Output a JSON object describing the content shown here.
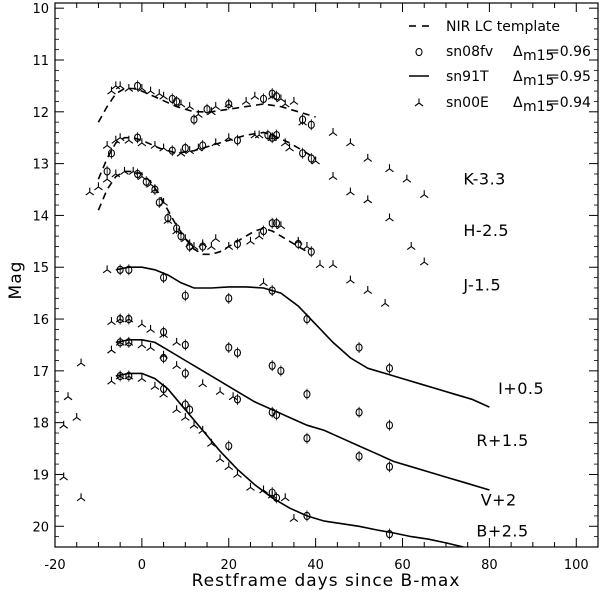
{
  "chart_data": {
    "type": "line",
    "xlabel": "Restframe days since B-max",
    "ylabel": "Mag",
    "xlim": [
      -20,
      105
    ],
    "ylim": [
      20.4,
      9.9
    ],
    "y_inverted": true,
    "x_ticks": [
      -20,
      0,
      20,
      40,
      60,
      80,
      100
    ],
    "x_tick_labels": [
      "-20",
      "0",
      "20",
      "40",
      "60",
      "80",
      "100"
    ],
    "y_ticks": [
      10,
      11,
      12,
      13,
      14,
      15,
      16,
      17,
      18,
      19,
      20
    ],
    "y_tick_labels": [
      "10",
      "11",
      "12",
      "13",
      "14",
      "15",
      "16",
      "17",
      "18",
      "19",
      "20"
    ],
    "legend": {
      "position": "top-right",
      "entries": [
        {
          "marker": "dash",
          "label": "NIR LC template"
        },
        {
          "marker": "circle",
          "label": "sn08fv",
          "delta_label": "Δ",
          "delta_sub": "m15",
          "delta_value": "=0.96"
        },
        {
          "marker": "line",
          "label": "sn91T",
          "delta_label": "Δ",
          "delta_sub": "m15",
          "delta_value": "=0.95"
        },
        {
          "marker": "tri",
          "label": "sn00E",
          "delta_label": "Δ",
          "delta_sub": "m15",
          "delta_value": "=0.94"
        }
      ]
    },
    "band_labels": [
      {
        "text": "K-3.3",
        "x": 74,
        "y": 13.4
      },
      {
        "text": "H-2.5",
        "x": 74,
        "y": 14.4
      },
      {
        "text": "J-1.5",
        "x": 74,
        "y": 15.45
      },
      {
        "text": "I+0.5",
        "x": 82,
        "y": 17.45
      },
      {
        "text": "R+1.5",
        "x": 77,
        "y": 18.45
      },
      {
        "text": "V+2",
        "x": 78,
        "y": 19.6
      },
      {
        "text": "B+2.5",
        "x": 77,
        "y": 20.2
      }
    ],
    "series": [
      {
        "name": "NIR LC template K",
        "style": "dashed",
        "points": [
          [
            -10,
            12.2
          ],
          [
            -8,
            11.9
          ],
          [
            -6,
            11.65
          ],
          [
            -4,
            11.55
          ],
          [
            -2,
            11.55
          ],
          [
            0,
            11.6
          ],
          [
            4,
            11.75
          ],
          [
            8,
            11.9
          ],
          [
            12,
            12.0
          ],
          [
            16,
            12.0
          ],
          [
            20,
            11.95
          ],
          [
            24,
            11.9
          ],
          [
            28,
            11.85
          ],
          [
            32,
            11.9
          ],
          [
            36,
            12.0
          ],
          [
            40,
            12.1
          ]
        ]
      },
      {
        "name": "NIR LC template H",
        "style": "dashed",
        "points": [
          [
            -10,
            13.3
          ],
          [
            -8,
            12.9
          ],
          [
            -6,
            12.6
          ],
          [
            -4,
            12.5
          ],
          [
            -2,
            12.5
          ],
          [
            0,
            12.55
          ],
          [
            4,
            12.7
          ],
          [
            8,
            12.8
          ],
          [
            12,
            12.75
          ],
          [
            16,
            12.65
          ],
          [
            20,
            12.55
          ],
          [
            24,
            12.45
          ],
          [
            28,
            12.4
          ],
          [
            30,
            12.45
          ],
          [
            34,
            12.6
          ],
          [
            38,
            12.8
          ],
          [
            40,
            12.9
          ]
        ]
      },
      {
        "name": "NIR LC template J",
        "style": "dashed",
        "points": [
          [
            -10,
            13.9
          ],
          [
            -8,
            13.5
          ],
          [
            -6,
            13.25
          ],
          [
            -4,
            13.15
          ],
          [
            -2,
            13.15
          ],
          [
            0,
            13.2
          ],
          [
            2,
            13.35
          ],
          [
            4,
            13.6
          ],
          [
            6,
            13.9
          ],
          [
            8,
            14.2
          ],
          [
            10,
            14.45
          ],
          [
            12,
            14.65
          ],
          [
            14,
            14.75
          ],
          [
            16,
            14.75
          ],
          [
            18,
            14.7
          ],
          [
            20,
            14.6
          ],
          [
            22,
            14.5
          ],
          [
            24,
            14.4
          ],
          [
            26,
            14.3
          ],
          [
            28,
            14.25
          ],
          [
            30,
            14.3
          ],
          [
            32,
            14.4
          ],
          [
            34,
            14.5
          ],
          [
            36,
            14.6
          ],
          [
            38,
            14.7
          ]
        ]
      },
      {
        "name": "sn91T J",
        "style": "solid",
        "points": [
          [
            -6,
            15.05
          ],
          [
            -3,
            15.0
          ],
          [
            0,
            15.0
          ],
          [
            3,
            15.05
          ],
          [
            6,
            15.15
          ],
          [
            9,
            15.3
          ],
          [
            12,
            15.4
          ],
          [
            16,
            15.4
          ],
          [
            20,
            15.38
          ],
          [
            24,
            15.38
          ],
          [
            28,
            15.4
          ],
          [
            32,
            15.5
          ],
          [
            36,
            15.75
          ],
          [
            40,
            16.1
          ],
          [
            44,
            16.45
          ],
          [
            48,
            16.75
          ],
          [
            52,
            16.95
          ],
          [
            56,
            17.05
          ],
          [
            60,
            17.15
          ],
          [
            64,
            17.25
          ],
          [
            68,
            17.35
          ],
          [
            72,
            17.45
          ],
          [
            76,
            17.55
          ],
          [
            80,
            17.7
          ]
        ]
      },
      {
        "name": "sn91T I",
        "style": "solid",
        "points": [
          [
            -6,
            16.45
          ],
          [
            -3,
            16.4
          ],
          [
            0,
            16.4
          ],
          [
            3,
            16.45
          ],
          [
            6,
            16.6
          ],
          [
            10,
            16.8
          ],
          [
            14,
            17.0
          ],
          [
            18,
            17.2
          ],
          [
            22,
            17.4
          ],
          [
            26,
            17.6
          ],
          [
            30,
            17.75
          ],
          [
            34,
            17.9
          ],
          [
            38,
            18.05
          ],
          [
            42,
            18.15
          ],
          [
            46,
            18.3
          ],
          [
            50,
            18.45
          ],
          [
            54,
            18.6
          ],
          [
            58,
            18.75
          ],
          [
            62,
            18.85
          ],
          [
            66,
            18.95
          ],
          [
            70,
            19.05
          ],
          [
            74,
            19.15
          ],
          [
            80,
            19.3
          ]
        ]
      },
      {
        "name": "sn91T V",
        "style": "solid",
        "points": [
          [
            -6,
            17.1
          ],
          [
            -3,
            17.05
          ],
          [
            0,
            17.05
          ],
          [
            3,
            17.15
          ],
          [
            6,
            17.35
          ],
          [
            10,
            17.75
          ],
          [
            14,
            18.15
          ],
          [
            18,
            18.55
          ],
          [
            22,
            18.9
          ],
          [
            26,
            19.2
          ],
          [
            30,
            19.45
          ],
          [
            34,
            19.65
          ],
          [
            38,
            19.8
          ],
          [
            42,
            19.9
          ],
          [
            46,
            19.95
          ],
          [
            50,
            20.0
          ],
          [
            54,
            20.07
          ],
          [
            58,
            20.13
          ],
          [
            62,
            20.2
          ],
          [
            66,
            20.25
          ],
          [
            70,
            20.32
          ],
          [
            74,
            20.4
          ]
        ]
      }
    ],
    "circles": [
      [
        -1,
        11.5
      ],
      [
        7,
        11.75
      ],
      [
        8,
        11.8
      ],
      [
        12,
        12.15
      ],
      [
        15,
        11.95
      ],
      [
        20,
        11.85
      ],
      [
        28,
        11.75
      ],
      [
        30,
        11.65
      ],
      [
        31,
        11.7
      ],
      [
        37,
        12.15
      ],
      [
        39,
        12.25
      ],
      [
        -8,
        13.15
      ],
      [
        -7,
        12.8
      ],
      [
        -1,
        12.5
      ],
      [
        7,
        12.75
      ],
      [
        10,
        12.7
      ],
      [
        14,
        12.65
      ],
      [
        22,
        12.55
      ],
      [
        29,
        12.45
      ],
      [
        30,
        12.5
      ],
      [
        31,
        12.45
      ],
      [
        37,
        12.8
      ],
      [
        39,
        12.9
      ],
      [
        -1,
        13.2
      ],
      [
        1,
        13.35
      ],
      [
        3,
        13.5
      ],
      [
        4,
        13.75
      ],
      [
        6,
        14.05
      ],
      [
        8,
        14.25
      ],
      [
        9,
        14.4
      ],
      [
        11,
        14.6
      ],
      [
        14,
        14.6
      ],
      [
        22,
        14.55
      ],
      [
        28,
        14.3
      ],
      [
        30,
        14.15
      ],
      [
        31,
        14.15
      ],
      [
        36,
        14.55
      ],
      [
        39,
        14.7
      ],
      [
        -5,
        15.05
      ],
      [
        -3,
        15.05
      ],
      [
        5,
        15.2
      ],
      [
        10,
        15.55
      ],
      [
        20,
        15.6
      ],
      [
        30,
        15.45
      ],
      [
        38,
        16.0
      ],
      [
        50,
        16.55
      ],
      [
        57,
        16.95
      ],
      [
        -5,
        16.0
      ],
      [
        -3,
        16.0
      ],
      [
        5,
        16.25
      ],
      [
        10,
        16.5
      ],
      [
        20,
        16.55
      ],
      [
        22,
        16.65
      ],
      [
        30,
        16.9
      ],
      [
        32,
        17.0
      ],
      [
        38,
        17.45
      ],
      [
        50,
        17.8
      ],
      [
        57,
        18.05
      ],
      [
        -5,
        16.45
      ],
      [
        -3,
        16.45
      ],
      [
        5,
        16.75
      ],
      [
        10,
        17.05
      ],
      [
        22,
        17.55
      ],
      [
        30,
        17.8
      ],
      [
        31,
        17.85
      ],
      [
        38,
        18.3
      ],
      [
        50,
        18.65
      ],
      [
        57,
        18.85
      ],
      [
        -5,
        17.1
      ],
      [
        -3,
        17.1
      ],
      [
        5,
        17.35
      ],
      [
        10,
        17.65
      ],
      [
        11,
        17.75
      ],
      [
        20,
        18.45
      ],
      [
        30,
        19.35
      ],
      [
        31,
        19.45
      ],
      [
        38,
        19.8
      ],
      [
        57,
        20.15
      ]
    ],
    "triangles": [
      [
        -7,
        11.6
      ],
      [
        -6,
        11.5
      ],
      [
        -5,
        11.5
      ],
      [
        -3,
        11.55
      ],
      [
        0,
        11.55
      ],
      [
        2,
        11.6
      ],
      [
        4,
        11.65
      ],
      [
        5,
        11.7
      ],
      [
        9,
        11.85
      ],
      [
        11,
        11.9
      ],
      [
        13,
        12.05
      ],
      [
        16,
        12.0
      ],
      [
        17,
        11.9
      ],
      [
        20,
        11.85
      ],
      [
        24,
        11.8
      ],
      [
        26,
        11.7
      ],
      [
        30,
        11.7
      ],
      [
        32,
        11.75
      ],
      [
        33,
        11.85
      ],
      [
        35,
        11.8
      ],
      [
        37,
        12.2
      ],
      [
        44,
        12.4
      ],
      [
        48,
        12.6
      ],
      [
        52,
        12.9
      ],
      [
        57,
        13.1
      ],
      [
        61,
        13.3
      ],
      [
        65,
        13.6
      ],
      [
        -8,
        12.65
      ],
      [
        -6,
        12.55
      ],
      [
        -5,
        12.5
      ],
      [
        -3,
        12.55
      ],
      [
        0,
        12.6
      ],
      [
        3,
        12.65
      ],
      [
        5,
        12.7
      ],
      [
        9,
        12.8
      ],
      [
        11,
        12.75
      ],
      [
        13,
        12.7
      ],
      [
        17,
        12.6
      ],
      [
        20,
        12.5
      ],
      [
        26,
        12.45
      ],
      [
        27,
        12.45
      ],
      [
        30,
        12.5
      ],
      [
        33,
        12.6
      ],
      [
        34,
        12.7
      ],
      [
        40,
        12.95
      ],
      [
        44,
        13.25
      ],
      [
        48,
        13.55
      ],
      [
        52,
        13.7
      ],
      [
        57,
        14.05
      ],
      [
        62,
        14.6
      ],
      [
        65,
        14.9
      ],
      [
        -12,
        13.55
      ],
      [
        -10,
        13.45
      ],
      [
        -8,
        13.3
      ],
      [
        -6,
        13.2
      ],
      [
        -4,
        13.15
      ],
      [
        -2,
        13.15
      ],
      [
        0,
        13.25
      ],
      [
        2,
        13.4
      ],
      [
        3,
        13.5
      ],
      [
        5,
        13.75
      ],
      [
        6,
        14.1
      ],
      [
        8,
        14.3
      ],
      [
        10,
        14.45
      ],
      [
        11,
        14.55
      ],
      [
        12,
        14.6
      ],
      [
        14,
        14.55
      ],
      [
        16,
        14.6
      ],
      [
        17,
        14.45
      ],
      [
        20,
        14.6
      ],
      [
        25,
        14.5
      ],
      [
        27,
        14.4
      ],
      [
        32,
        14.2
      ],
      [
        36,
        14.5
      ],
      [
        38,
        14.6
      ],
      [
        41,
        14.95
      ],
      [
        44,
        14.95
      ],
      [
        48,
        15.25
      ],
      [
        52,
        15.45
      ],
      [
        56,
        15.7
      ],
      [
        -8,
        15.05
      ],
      [
        28,
        15.3
      ],
      [
        -7,
        16.05
      ],
      [
        -5,
        16.0
      ],
      [
        -3,
        16.0
      ],
      [
        0,
        16.1
      ],
      [
        2,
        16.2
      ],
      [
        5,
        16.3
      ],
      [
        8,
        16.45
      ],
      [
        -7,
        16.6
      ],
      [
        -5,
        16.45
      ],
      [
        -3,
        16.45
      ],
      [
        0,
        16.5
      ],
      [
        2,
        16.55
      ],
      [
        5,
        16.7
      ],
      [
        8,
        16.9
      ],
      [
        14,
        17.25
      ],
      [
        18,
        17.4
      ],
      [
        21,
        17.5
      ],
      [
        -18,
        19.05
      ],
      [
        -17,
        17.5
      ],
      [
        -15,
        17.9
      ],
      [
        -14,
        19.45
      ],
      [
        -14,
        16.85
      ],
      [
        -18,
        18.05
      ],
      [
        -7,
        17.2
      ],
      [
        -5,
        17.1
      ],
      [
        -3,
        17.1
      ],
      [
        0,
        17.15
      ],
      [
        3,
        17.3
      ],
      [
        5,
        17.45
      ],
      [
        8,
        17.75
      ],
      [
        10,
        17.9
      ],
      [
        12,
        18.05
      ],
      [
        14,
        18.15
      ],
      [
        16,
        18.4
      ],
      [
        18,
        18.7
      ],
      [
        20,
        18.85
      ],
      [
        22,
        19.0
      ],
      [
        25,
        19.25
      ],
      [
        28,
        19.3
      ],
      [
        30,
        19.4
      ],
      [
        33,
        19.45
      ],
      [
        35,
        19.85
      ]
    ]
  }
}
